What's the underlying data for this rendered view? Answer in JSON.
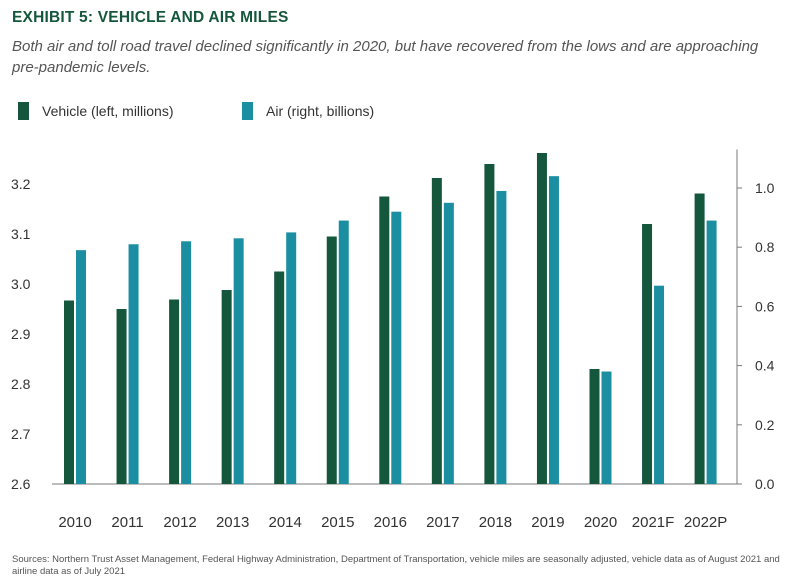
{
  "title": "EXHIBIT 5: VEHICLE AND AIR MILES",
  "subtitle": "Both air and toll road travel declined significantly in 2020, but have recovered from the lows and are approaching pre-pandemic levels.",
  "source": "Sources: Northern Trust Asset Management, Federal Highway Administration, Department of Transportation, vehicle miles are seasonally adjusted, vehicle data as of August 2021 and airline data as of July 2021",
  "colors": {
    "vehicle": "#14573d",
    "air": "#1b8fa1",
    "axis": "#7a7a7a",
    "text": "#333333"
  },
  "chart_data": {
    "type": "bar",
    "categories": [
      "2010",
      "2011",
      "2012",
      "2013",
      "2014",
      "2015",
      "2016",
      "2017",
      "2018",
      "2019",
      "2020",
      "2021F",
      "2022P"
    ],
    "series": [
      {
        "name": "Vehicle (left, millions)",
        "axis": "left",
        "values": [
          2.967,
          2.95,
          2.969,
          2.988,
          3.025,
          3.095,
          3.175,
          3.212,
          3.24,
          3.262,
          2.83,
          3.12,
          3.181
        ]
      },
      {
        "name": "Air (right, billions)",
        "axis": "right",
        "values": [
          0.79,
          0.81,
          0.82,
          0.83,
          0.85,
          0.89,
          0.92,
          0.95,
          0.99,
          1.04,
          0.38,
          0.67,
          0.89
        ]
      }
    ],
    "y_left": {
      "ylim": [
        2.6,
        3.27
      ],
      "ticks": [
        "2.6",
        "2.7",
        "2.8",
        "2.9",
        "3.0",
        "3.1",
        "3.2"
      ]
    },
    "y_right": {
      "ylim": [
        0.0,
        1.13
      ],
      "ticks": [
        "0.0",
        "0.2",
        "0.4",
        "0.6",
        "0.8",
        "1.0"
      ]
    },
    "grid": false,
    "legend_position": "top-left"
  }
}
